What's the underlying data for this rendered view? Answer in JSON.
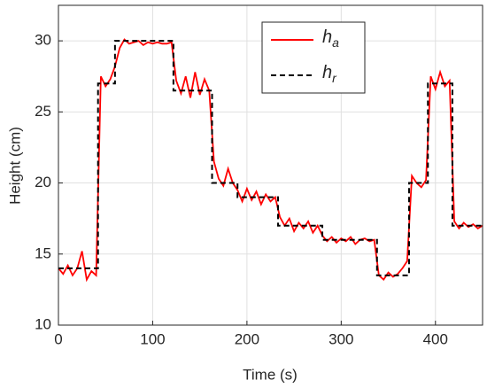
{
  "chart_data": {
    "type": "line",
    "xlabel": "Time (s)",
    "ylabel": "Height (cm)",
    "xlim": [
      0,
      450
    ],
    "ylim": [
      10,
      32.5
    ],
    "xticks": [
      0,
      100,
      200,
      300,
      400
    ],
    "yticks": [
      10,
      15,
      20,
      25,
      30
    ],
    "grid": true,
    "legend": "upper right",
    "series": [
      {
        "name": "h_a",
        "color": "#ff0000",
        "dash": false,
        "x": [
          0,
          5,
          10,
          15,
          20,
          25,
          30,
          35,
          40,
          45,
          50,
          55,
          60,
          65,
          70,
          75,
          80,
          85,
          90,
          95,
          100,
          105,
          110,
          115,
          120,
          125,
          130,
          135,
          140,
          145,
          150,
          155,
          160,
          165,
          170,
          175,
          180,
          185,
          190,
          195,
          200,
          205,
          210,
          215,
          220,
          225,
          230,
          235,
          240,
          245,
          250,
          255,
          260,
          265,
          270,
          275,
          280,
          285,
          290,
          295,
          300,
          305,
          310,
          315,
          320,
          325,
          330,
          335,
          340,
          345,
          350,
          355,
          360,
          365,
          370,
          375,
          380,
          385,
          390,
          395,
          400,
          405,
          410,
          415,
          420,
          425,
          430,
          435,
          440,
          445,
          450
        ],
        "values": [
          14,
          13.6,
          14.2,
          13.5,
          14.0,
          15.2,
          13.2,
          13.8,
          13.5,
          27.5,
          26.8,
          27.3,
          28.2,
          29.5,
          30.1,
          29.8,
          29.9,
          30.0,
          29.7,
          29.9,
          29.8,
          29.9,
          29.8,
          29.8,
          29.9,
          27.2,
          26.3,
          27.5,
          26.0,
          27.8,
          26.2,
          27.3,
          26.5,
          21.5,
          20.3,
          19.8,
          21.0,
          20.0,
          19.5,
          18.7,
          19.6,
          18.8,
          19.4,
          18.5,
          19.2,
          18.7,
          19.0,
          17.6,
          17.0,
          17.5,
          16.6,
          17.2,
          16.8,
          17.3,
          16.5,
          17.0,
          16.3,
          15.9,
          16.2,
          15.8,
          16.1,
          15.9,
          16.2,
          15.7,
          16.0,
          16.1,
          15.9,
          16.0,
          13.5,
          13.2,
          13.7,
          13.4,
          13.6,
          14.0,
          14.5,
          20.5,
          20.0,
          19.7,
          20.2,
          27.5,
          26.6,
          27.8,
          26.8,
          27.2,
          17.3,
          16.8,
          17.2,
          16.9,
          17.1,
          16.8,
          17.0
        ]
      },
      {
        "name": "h_r",
        "color": "#000000",
        "dash": true,
        "x": [
          0,
          42,
          42,
          60,
          60,
          122,
          122,
          163,
          163,
          190,
          190,
          233,
          233,
          280,
          280,
          338,
          338,
          372,
          372,
          392,
          392,
          418,
          418,
          450
        ],
        "values": [
          14,
          14,
          27,
          27,
          30,
          30,
          26.5,
          26.5,
          20,
          20,
          19,
          19,
          17,
          17,
          16,
          16,
          13.5,
          13.5,
          20,
          20,
          27,
          27,
          17,
          17
        ]
      }
    ]
  }
}
